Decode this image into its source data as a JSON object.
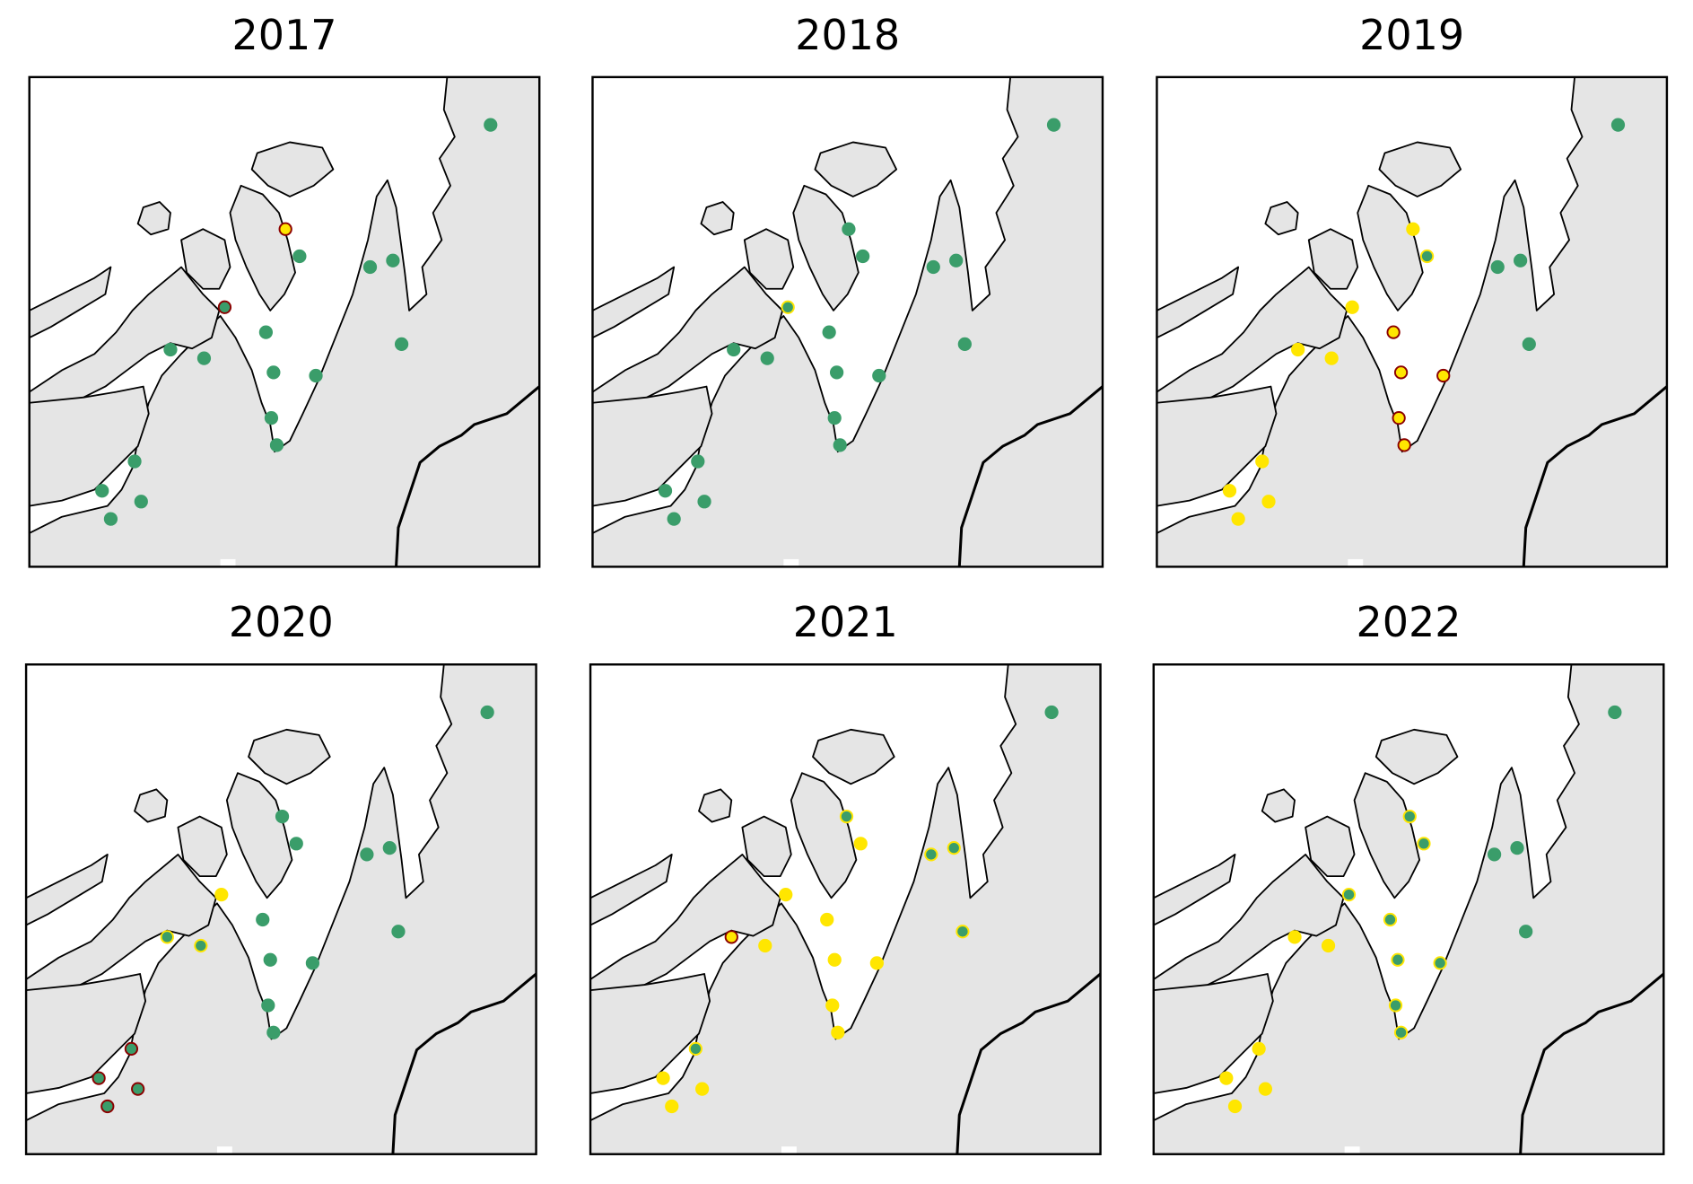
{
  "panels": [
    {
      "title": "2017",
      "sites": [
        {
          "fill": "#3a9d6a",
          "edge": "#3a9d6a"
        },
        {
          "fill": "#ffe600",
          "edge": "#8b0000"
        },
        {
          "fill": "#3a9d6a",
          "edge": "#3a9d6a"
        },
        {
          "fill": "#3a9d6a",
          "edge": "#3a9d6a"
        },
        {
          "fill": "#3a9d6a",
          "edge": "#3a9d6a"
        },
        {
          "fill": "#3a9d6a",
          "edge": "#8b0000"
        },
        {
          "fill": "#3a9d6a",
          "edge": "#3a9d6a"
        },
        {
          "fill": "#3a9d6a",
          "edge": "#3a9d6a"
        },
        {
          "fill": "#3a9d6a",
          "edge": "#3a9d6a"
        },
        {
          "fill": "#3a9d6a",
          "edge": "#3a9d6a"
        },
        {
          "fill": "#3a9d6a",
          "edge": "#3a9d6a"
        },
        {
          "fill": "#3a9d6a",
          "edge": "#3a9d6a"
        },
        {
          "fill": "#3a9d6a",
          "edge": "#3a9d6a"
        },
        {
          "fill": "#3a9d6a",
          "edge": "#3a9d6a"
        },
        {
          "fill": "#3a9d6a",
          "edge": "#3a9d6a"
        },
        {
          "fill": "#3a9d6a",
          "edge": "#3a9d6a"
        },
        {
          "fill": "#3a9d6a",
          "edge": "#3a9d6a"
        },
        {
          "fill": "#3a9d6a",
          "edge": "#3a9d6a"
        }
      ]
    },
    {
      "title": "2018",
      "sites": [
        {
          "fill": "#3a9d6a",
          "edge": "#3a9d6a"
        },
        {
          "fill": "#3a9d6a",
          "edge": "#3a9d6a"
        },
        {
          "fill": "#3a9d6a",
          "edge": "#3a9d6a"
        },
        {
          "fill": "#3a9d6a",
          "edge": "#3a9d6a"
        },
        {
          "fill": "#3a9d6a",
          "edge": "#3a9d6a"
        },
        {
          "fill": "#3a9d6a",
          "edge": "#ffe600"
        },
        {
          "fill": "#3a9d6a",
          "edge": "#3a9d6a"
        },
        {
          "fill": "#3a9d6a",
          "edge": "#3a9d6a"
        },
        {
          "fill": "#3a9d6a",
          "edge": "#3a9d6a"
        },
        {
          "fill": "#3a9d6a",
          "edge": "#3a9d6a"
        },
        {
          "fill": "#3a9d6a",
          "edge": "#3a9d6a"
        },
        {
          "fill": "#3a9d6a",
          "edge": "#3a9d6a"
        },
        {
          "fill": "#3a9d6a",
          "edge": "#3a9d6a"
        },
        {
          "fill": "#3a9d6a",
          "edge": "#3a9d6a"
        },
        {
          "fill": "#3a9d6a",
          "edge": "#3a9d6a"
        },
        {
          "fill": "#3a9d6a",
          "edge": "#3a9d6a"
        },
        {
          "fill": "#3a9d6a",
          "edge": "#3a9d6a"
        },
        {
          "fill": "#3a9d6a",
          "edge": "#3a9d6a"
        }
      ]
    },
    {
      "title": "2019",
      "sites": [
        {
          "fill": "#3a9d6a",
          "edge": "#3a9d6a"
        },
        {
          "fill": "#ffe600",
          "edge": "#ffe600"
        },
        {
          "fill": "#3a9d6a",
          "edge": "#ffe600"
        },
        {
          "fill": "#3a9d6a",
          "edge": "#3a9d6a"
        },
        {
          "fill": "#3a9d6a",
          "edge": "#3a9d6a"
        },
        {
          "fill": "#ffe600",
          "edge": "#ffe600"
        },
        {
          "fill": "#ffe600",
          "edge": "#8b0000"
        },
        {
          "fill": "#ffe600",
          "edge": "#ffe600"
        },
        {
          "fill": "#ffe600",
          "edge": "#ffe600"
        },
        {
          "fill": "#3a9d6a",
          "edge": "#3a9d6a"
        },
        {
          "fill": "#ffe600",
          "edge": "#8b0000"
        },
        {
          "fill": "#ffe600",
          "edge": "#8b0000"
        },
        {
          "fill": "#ffe600",
          "edge": "#8b0000"
        },
        {
          "fill": "#ffe600",
          "edge": "#8b0000"
        },
        {
          "fill": "#ffe600",
          "edge": "#ffe600"
        },
        {
          "fill": "#ffe600",
          "edge": "#ffe600"
        },
        {
          "fill": "#ffe600",
          "edge": "#ffe600"
        },
        {
          "fill": "#ffe600",
          "edge": "#ffe600"
        }
      ]
    },
    {
      "title": "2020",
      "sites": [
        {
          "fill": "#3a9d6a",
          "edge": "#3a9d6a"
        },
        {
          "fill": "#3a9d6a",
          "edge": "#3a9d6a"
        },
        {
          "fill": "#3a9d6a",
          "edge": "#3a9d6a"
        },
        {
          "fill": "#3a9d6a",
          "edge": "#3a9d6a"
        },
        {
          "fill": "#3a9d6a",
          "edge": "#3a9d6a"
        },
        {
          "fill": "#ffe600",
          "edge": "#ffe600"
        },
        {
          "fill": "#3a9d6a",
          "edge": "#3a9d6a"
        },
        {
          "fill": "#3a9d6a",
          "edge": "#ffe600"
        },
        {
          "fill": "#3a9d6a",
          "edge": "#ffe600"
        },
        {
          "fill": "#3a9d6a",
          "edge": "#3a9d6a"
        },
        {
          "fill": "#3a9d6a",
          "edge": "#3a9d6a"
        },
        {
          "fill": "#3a9d6a",
          "edge": "#3a9d6a"
        },
        {
          "fill": "#3a9d6a",
          "edge": "#3a9d6a"
        },
        {
          "fill": "#3a9d6a",
          "edge": "#3a9d6a"
        },
        {
          "fill": "#3a9d6a",
          "edge": "#8b0000"
        },
        {
          "fill": "#3a9d6a",
          "edge": "#8b0000"
        },
        {
          "fill": "#3a9d6a",
          "edge": "#8b0000"
        },
        {
          "fill": "#3a9d6a",
          "edge": "#8b0000"
        }
      ]
    },
    {
      "title": "2021",
      "sites": [
        {
          "fill": "#3a9d6a",
          "edge": "#3a9d6a"
        },
        {
          "fill": "#3a9d6a",
          "edge": "#ffe600"
        },
        {
          "fill": "#ffe600",
          "edge": "#ffe600"
        },
        {
          "fill": "#3a9d6a",
          "edge": "#ffe600"
        },
        {
          "fill": "#3a9d6a",
          "edge": "#ffe600"
        },
        {
          "fill": "#ffe600",
          "edge": "#ffe600"
        },
        {
          "fill": "#ffe600",
          "edge": "#ffe600"
        },
        {
          "fill": "#ffe600",
          "edge": "#8b0000"
        },
        {
          "fill": "#ffe600",
          "edge": "#ffe600"
        },
        {
          "fill": "#3a9d6a",
          "edge": "#ffe600"
        },
        {
          "fill": "#ffe600",
          "edge": "#ffe600"
        },
        {
          "fill": "#ffe600",
          "edge": "#ffe600"
        },
        {
          "fill": "#ffe600",
          "edge": "#ffe600"
        },
        {
          "fill": "#ffe600",
          "edge": "#ffe600"
        },
        {
          "fill": "#3a9d6a",
          "edge": "#ffe600"
        },
        {
          "fill": "#ffe600",
          "edge": "#ffe600"
        },
        {
          "fill": "#ffe600",
          "edge": "#ffe600"
        },
        {
          "fill": "#ffe600",
          "edge": "#ffe600"
        }
      ]
    },
    {
      "title": "2022",
      "sites": [
        {
          "fill": "#3a9d6a",
          "edge": "#3a9d6a"
        },
        {
          "fill": "#3a9d6a",
          "edge": "#ffe600"
        },
        {
          "fill": "#3a9d6a",
          "edge": "#ffe600"
        },
        {
          "fill": "#3a9d6a",
          "edge": "#3a9d6a"
        },
        {
          "fill": "#3a9d6a",
          "edge": "#3a9d6a"
        },
        {
          "fill": "#3a9d6a",
          "edge": "#ffe600"
        },
        {
          "fill": "#3a9d6a",
          "edge": "#ffe600"
        },
        {
          "fill": "#ffe600",
          "edge": "#ffe600"
        },
        {
          "fill": "#ffe600",
          "edge": "#ffe600"
        },
        {
          "fill": "#3a9d6a",
          "edge": "#3a9d6a"
        },
        {
          "fill": "#3a9d6a",
          "edge": "#ffe600"
        },
        {
          "fill": "#3a9d6a",
          "edge": "#ffe600"
        },
        {
          "fill": "#3a9d6a",
          "edge": "#ffe600"
        },
        {
          "fill": "#3a9d6a",
          "edge": "#ffe600"
        },
        {
          "fill": "#ffe600",
          "edge": "#ffe600"
        },
        {
          "fill": "#ffe600",
          "edge": "#ffe600"
        },
        {
          "fill": "#ffe600",
          "edge": "#ffe600"
        },
        {
          "fill": "#ffe600",
          "edge": "#ffe600"
        }
      ]
    }
  ]
}
